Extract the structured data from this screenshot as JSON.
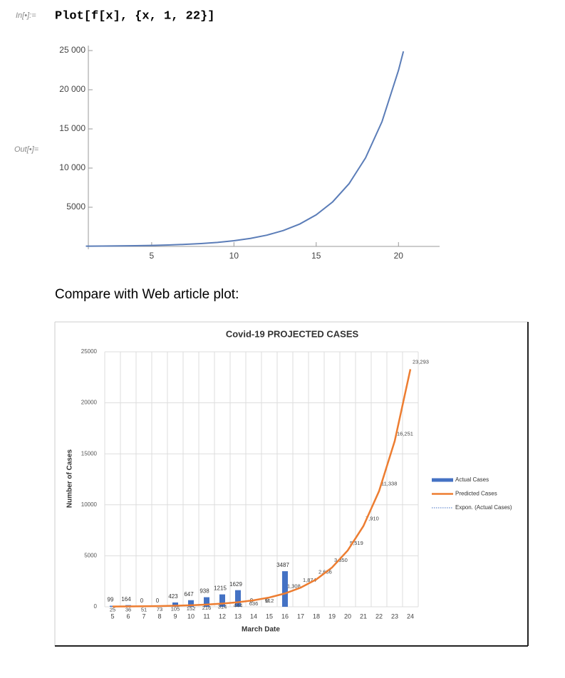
{
  "in_label": "In[•]:=",
  "input": "Plot[f[x], {x, 1, 22}]",
  "out_label": "Out[•]=",
  "caption": "Compare with Web article plot:",
  "chart_data": [
    {
      "type": "line",
      "color": "#5b7db8",
      "x": [
        1,
        2,
        3,
        4,
        5,
        6,
        7,
        8,
        9,
        10,
        11,
        12,
        13,
        14,
        15,
        16,
        17,
        18,
        19,
        20,
        20.3
      ],
      "values": [
        33,
        46,
        65,
        92,
        130,
        183,
        258,
        364,
        513,
        723,
        1020,
        1438,
        2028,
        2859,
        4031,
        5684,
        8015,
        11301,
        15934,
        22467,
        24900
      ],
      "xlim": [
        1,
        22.5
      ],
      "xticks": [
        5,
        10,
        15,
        20
      ],
      "ylim": [
        0,
        25000
      ],
      "yticks": [
        5000,
        {
          "value": 10000,
          "label": "10 000"
        },
        {
          "value": 15000,
          "label": "15 000"
        },
        {
          "value": 20000,
          "label": "20 000"
        },
        {
          "value": 25000,
          "label": "25 000"
        }
      ]
    },
    {
      "type": "combo",
      "title": "Covid-19 PROJECTED CASES",
      "x_label": "March Date",
      "y_label": "Number of Cases",
      "categories": [
        "5",
        "6",
        "7",
        "8",
        "9",
        "10",
        "11",
        "12",
        "13",
        "14",
        "15",
        "16",
        "17",
        "18",
        "19",
        "20",
        "21",
        "22",
        "23",
        "24"
      ],
      "series": [
        {
          "name": "Actual Cases",
          "kind": "bar",
          "color": "#4472c4",
          "values": [
            99,
            164,
            0,
            0,
            423,
            647,
            938,
            1215,
            1629,
            0,
            0,
            3487,
            null,
            null,
            null,
            null,
            null,
            null,
            null,
            null
          ]
        },
        {
          "name": "Predicted Cases",
          "kind": "line",
          "color": "#ed7d31",
          "values": [
            25,
            36,
            51,
            73,
            105,
            152,
            216,
            314,
            444,
            636,
            912,
            1308,
            1874,
            2686,
            3850,
            5519,
            7910,
            11338,
            16251,
            23293
          ],
          "value_labels": [
            "25",
            "36",
            "51",
            "73",
            "105",
            "152",
            "216",
            "314",
            "444",
            "636",
            "912",
            "1,308",
            "1,874",
            "2,686",
            "3,850",
            "5,519",
            "7,910",
            "11,338",
            "16,251",
            "23,293"
          ]
        }
      ],
      "trendline": {
        "name": "Expon. (Actual Cases)",
        "color": "#4472c4"
      },
      "ylim": [
        0,
        25000
      ],
      "yticks": [
        0,
        5000,
        10000,
        15000,
        20000,
        25000
      ],
      "grid": true,
      "legend": "right"
    }
  ]
}
